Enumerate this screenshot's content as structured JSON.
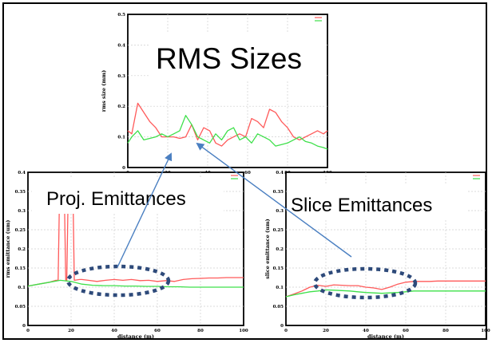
{
  "labels": {
    "rms_title": "RMS Sizes",
    "proj_title": "Proj. Emittances",
    "slice_title": "Slice Emittances"
  },
  "colors": {
    "series_x": "#ff5a5a",
    "series_y": "#3ee04a",
    "arrow": "#4a7fc1",
    "ellipse": "#2e4a7a"
  },
  "chart_data": [
    {
      "id": "rms",
      "type": "line",
      "title": "",
      "xlabel": "",
      "ylabel": "rms size (mm)",
      "xlim": [
        0,
        100
      ],
      "ylim": [
        0,
        0.5
      ],
      "xticks": [
        "0",
        "20",
        "40",
        "60",
        "80",
        "100"
      ],
      "yticks": [
        "0",
        "0.1",
        "0.2",
        "0.3",
        "0.4",
        "0.5"
      ],
      "series": [
        {
          "x": [
            0,
            2,
            5,
            8,
            11,
            14,
            17,
            20,
            23,
            26,
            29,
            32,
            35,
            38,
            41,
            44,
            47,
            50,
            53,
            56,
            59,
            62,
            65,
            68,
            71,
            74,
            77,
            80,
            83,
            86,
            89,
            92,
            95,
            98,
            100
          ],
          "y": [
            0.12,
            0.11,
            0.21,
            0.18,
            0.15,
            0.13,
            0.1,
            0.1,
            0.1,
            0.095,
            0.1,
            0.14,
            0.09,
            0.13,
            0.12,
            0.08,
            0.07,
            0.09,
            0.1,
            0.11,
            0.1,
            0.16,
            0.15,
            0.13,
            0.19,
            0.18,
            0.15,
            0.13,
            0.1,
            0.09,
            0.1,
            0.11,
            0.12,
            0.11,
            0.12
          ]
        },
        {
          "x": [
            0,
            2,
            5,
            8,
            11,
            14,
            17,
            20,
            23,
            26,
            29,
            32,
            35,
            38,
            41,
            44,
            47,
            50,
            53,
            56,
            59,
            62,
            65,
            68,
            71,
            74,
            77,
            80,
            83,
            86,
            89,
            92,
            95,
            98,
            100
          ],
          "y": [
            0.08,
            0.1,
            0.12,
            0.09,
            0.095,
            0.1,
            0.11,
            0.1,
            0.11,
            0.12,
            0.17,
            0.14,
            0.1,
            0.09,
            0.08,
            0.11,
            0.09,
            0.12,
            0.13,
            0.09,
            0.1,
            0.08,
            0.11,
            0.1,
            0.09,
            0.07,
            0.075,
            0.08,
            0.09,
            0.1,
            0.085,
            0.08,
            0.07,
            0.065,
            0.06
          ]
        }
      ]
    },
    {
      "id": "proj",
      "type": "line",
      "title": "",
      "xlabel": "distance (m)",
      "ylabel": "rms emittance (um)",
      "xlim": [
        0,
        100
      ],
      "ylim": [
        0,
        0.4
      ],
      "xticks": [
        "0",
        "20",
        "40",
        "60",
        "80",
        "100"
      ],
      "yticks": [
        "0",
        "0.05",
        "0.1",
        "0.15",
        "0.2",
        "0.25",
        "0.3",
        "0.35",
        "0.4"
      ],
      "series": [
        {
          "x": [
            0,
            5,
            10,
            13,
            14,
            14.5,
            17,
            17.5,
            18,
            18.5,
            21,
            21.5,
            24,
            25,
            28,
            32,
            36,
            40,
            44,
            48,
            52,
            56,
            60,
            64,
            68,
            72,
            76,
            80,
            84,
            88,
            92,
            96,
            100
          ],
          "y": [
            0.103,
            0.108,
            0.113,
            0.118,
            0.118,
            0.3,
            0.3,
            0.118,
            0.118,
            0.3,
            0.3,
            0.118,
            0.12,
            0.12,
            0.118,
            0.115,
            0.118,
            0.12,
            0.118,
            0.12,
            0.117,
            0.118,
            0.115,
            0.117,
            0.115,
            0.12,
            0.122,
            0.123,
            0.124,
            0.124,
            0.125,
            0.125,
            0.125
          ]
        },
        {
          "x": [
            0,
            5,
            10,
            15,
            20,
            25,
            30,
            35,
            40,
            45,
            50,
            55,
            60,
            65,
            70,
            75,
            80,
            85,
            90,
            95,
            100
          ],
          "y": [
            0.103,
            0.108,
            0.113,
            0.118,
            0.115,
            0.108,
            0.105,
            0.104,
            0.104,
            0.103,
            0.103,
            0.102,
            0.102,
            0.101,
            0.101,
            0.1,
            0.1,
            0.1,
            0.1,
            0.1,
            0.1
          ]
        }
      ]
    },
    {
      "id": "slice",
      "type": "line",
      "title": "",
      "xlabel": "distance (m)",
      "ylabel": "slice emittance (um)",
      "xlim": [
        0,
        100
      ],
      "ylim": [
        0,
        0.4
      ],
      "xticks": [
        "0",
        "20",
        "40",
        "60",
        "80",
        "100"
      ],
      "yticks": [
        "0",
        "0.05",
        "0.1",
        "0.15",
        "0.2",
        "0.25",
        "0.3",
        "0.35",
        "0.4"
      ],
      "series": [
        {
          "x": [
            0,
            4,
            8,
            12,
            16,
            20,
            24,
            28,
            32,
            36,
            40,
            44,
            48,
            52,
            56,
            60,
            64,
            68,
            72,
            76,
            80,
            85,
            90,
            95,
            100
          ],
          "y": [
            0.075,
            0.082,
            0.09,
            0.1,
            0.105,
            0.102,
            0.106,
            0.105,
            0.104,
            0.104,
            0.1,
            0.098,
            0.094,
            0.1,
            0.108,
            0.113,
            0.115,
            0.115,
            0.115,
            0.116,
            0.116,
            0.116,
            0.116,
            0.116,
            0.116
          ]
        },
        {
          "x": [
            0,
            4,
            8,
            12,
            16,
            20,
            24,
            28,
            32,
            36,
            40,
            44,
            48,
            52,
            56,
            60,
            64,
            68,
            72,
            76,
            80,
            85,
            90,
            95,
            100
          ],
          "y": [
            0.075,
            0.08,
            0.084,
            0.088,
            0.09,
            0.093,
            0.092,
            0.091,
            0.09,
            0.088,
            0.086,
            0.085,
            0.084,
            0.085,
            0.086,
            0.088,
            0.09,
            0.09,
            0.09,
            0.09,
            0.09,
            0.09,
            0.09,
            0.09,
            0.09
          ]
        }
      ]
    }
  ]
}
